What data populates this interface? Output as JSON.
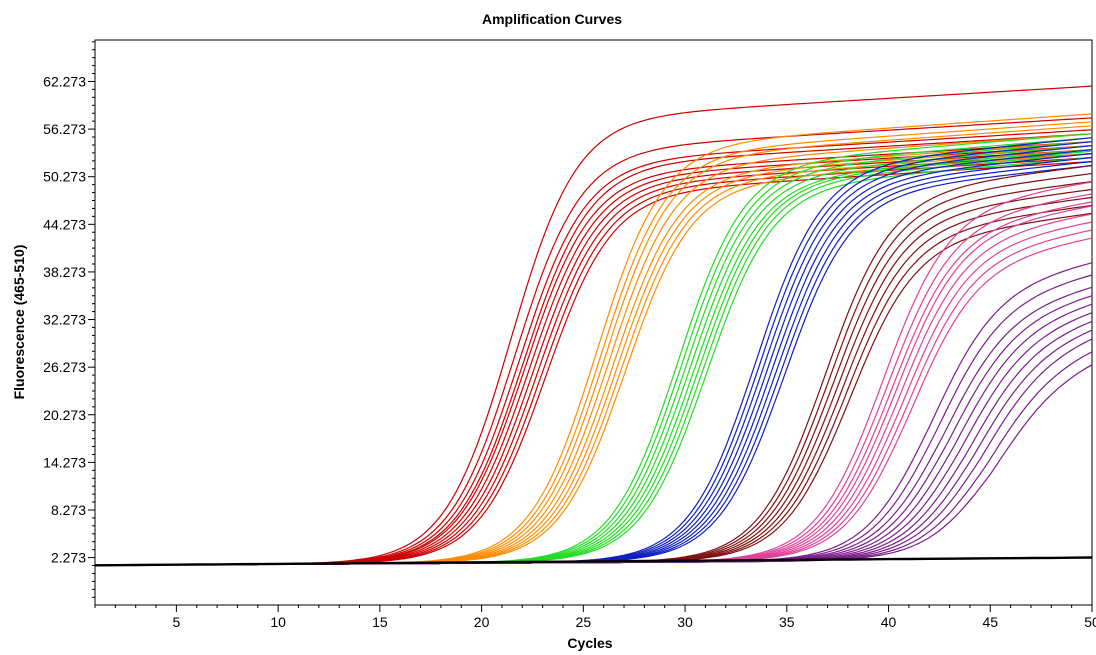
{
  "chart_data": {
    "type": "line",
    "title": "Amplification Curves",
    "xlabel": "Cycles",
    "ylabel": "Fluorescence (465-510)",
    "xlim": [
      1,
      50
    ],
    "ylim": [
      -3.7,
      67.5
    ],
    "xticks": [
      5,
      10,
      15,
      20,
      25,
      30,
      35,
      40,
      45,
      50
    ],
    "yticks": [
      2.273,
      8.273,
      14.273,
      20.273,
      26.273,
      32.273,
      38.273,
      44.273,
      50.273,
      56.273,
      62.273
    ],
    "ytick_labels": [
      "2.273",
      "8.273",
      "14.273",
      "20.273",
      "26.273",
      "32.273",
      "38.273",
      "44.273",
      "50.273",
      "56.273",
      "62.273"
    ],
    "legend": "none",
    "grid": false,
    "baseline": 1.3,
    "groups": [
      {
        "color": "#cc0000",
        "midpoints": [
          21.4,
          21.6,
          21.8,
          22.0,
          22.1,
          22.3,
          22.5,
          22.7,
          22.9,
          23.1
        ],
        "plateaus": [
          61.0,
          57.0,
          55.5,
          55.0,
          54.0,
          53.5,
          53.0,
          52.5,
          52.0,
          51.5
        ]
      },
      {
        "color": "#ff8c00",
        "midpoints": [
          25.6,
          25.8,
          26.0,
          26.2,
          26.4,
          26.6,
          26.8,
          27.0
        ],
        "plateaus": [
          57.5,
          56.5,
          56.0,
          55.0,
          54.0,
          53.5,
          53.0,
          52.5
        ]
      },
      {
        "color": "#22dd22",
        "midpoints": [
          29.6,
          29.8,
          30.0,
          30.2,
          30.4,
          30.6,
          30.8,
          31.0
        ],
        "plateaus": [
          55.0,
          54.5,
          54.0,
          53.5,
          53.0,
          52.8,
          52.5,
          52.0
        ]
      },
      {
        "color": "#1020c0",
        "midpoints": [
          33.4,
          33.6,
          33.8,
          34.0,
          34.2,
          34.4,
          34.6,
          34.8
        ],
        "plateaus": [
          54.5,
          54.0,
          53.5,
          53.0,
          52.5,
          52.0,
          51.5,
          51.0
        ]
      },
      {
        "color": "#801010",
        "midpoints": [
          36.8,
          37.0,
          37.2,
          37.4,
          37.6,
          37.8,
          38.0
        ],
        "plateaus": [
          51.0,
          50.0,
          49.0,
          48.0,
          47.0,
          46.0,
          45.0
        ]
      },
      {
        "color": "#e0409a",
        "midpoints": [
          39.6,
          39.8,
          40.0,
          40.2,
          40.4,
          40.6,
          40.8,
          41.0
        ],
        "plateaus": [
          49.0,
          47.5,
          46.5,
          46.0,
          45.0,
          44.0,
          43.0,
          42.0
        ]
      },
      {
        "color": "#7a1e8a",
        "midpoints": [
          42.0,
          42.3,
          42.6,
          42.9,
          43.2,
          43.5,
          43.8,
          44.1,
          44.4,
          44.7,
          45.0
        ],
        "plateaus": [
          39.0,
          37.5,
          36.0,
          35.0,
          34.0,
          33.0,
          32.0,
          31.0,
          30.0,
          28.5,
          27.0
        ]
      }
    ]
  }
}
